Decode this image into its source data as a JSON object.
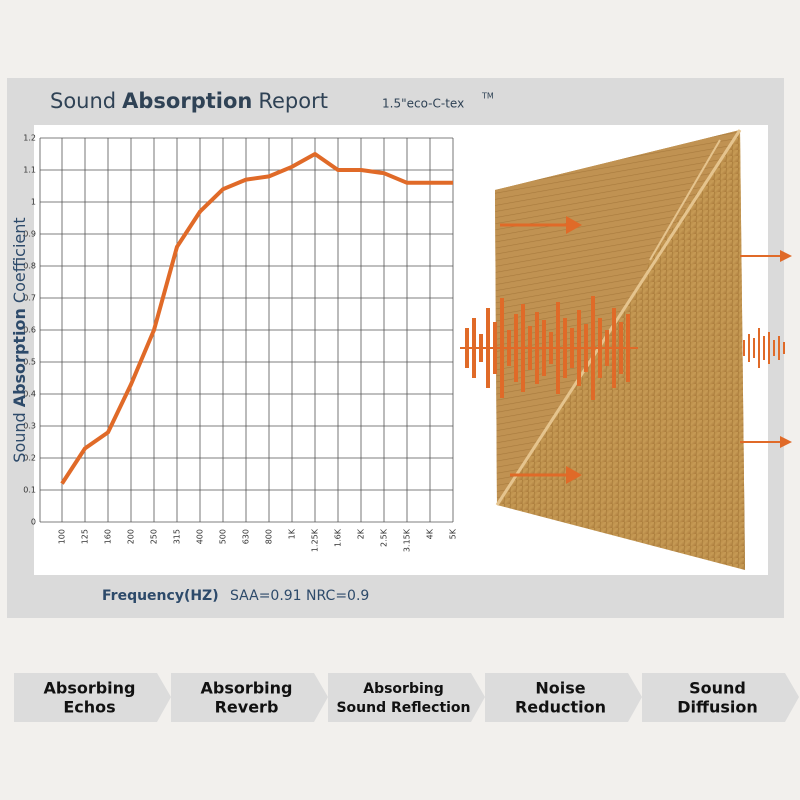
{
  "header": {
    "title_words": [
      "Sound",
      "Absorption",
      "Report"
    ],
    "product": "1.5\"eco-C-tex",
    "trademark": "TM"
  },
  "chart_data": {
    "type": "line",
    "y_label_words": [
      "Sound",
      "Absorption",
      "Coefficient"
    ],
    "x_label": "Frequency(HZ)",
    "note": "SAA=0.91 NRC=0.9",
    "categories": [
      "100",
      "125",
      "160",
      "200",
      "250",
      "315",
      "400",
      "500",
      "630",
      "800",
      "1K",
      "1.25K",
      "1.6K",
      "2K",
      "2.5K",
      "3.15K",
      "4K",
      "5K"
    ],
    "values": [
      0.12,
      0.23,
      0.28,
      0.43,
      0.6,
      0.86,
      0.97,
      1.04,
      1.07,
      1.08,
      1.11,
      1.15,
      1.1,
      1.1,
      1.09,
      1.06,
      1.06,
      1.06
    ],
    "color": "#e06a28",
    "ylim": [
      0,
      1.2
    ],
    "yticks": [
      0,
      0.1,
      0.2,
      0.3,
      0.4,
      0.5,
      0.6,
      0.7,
      0.8,
      0.9,
      1,
      1.1,
      1.2
    ],
    "grid": true
  },
  "features": [
    [
      "Absorbing",
      "Echos"
    ],
    [
      "Absorbing",
      "Reverb"
    ],
    [
      "Absorbing",
      "Sound Reflection"
    ],
    [
      "Noise",
      "Reduction"
    ],
    [
      "Sound",
      "Diffusion"
    ]
  ]
}
